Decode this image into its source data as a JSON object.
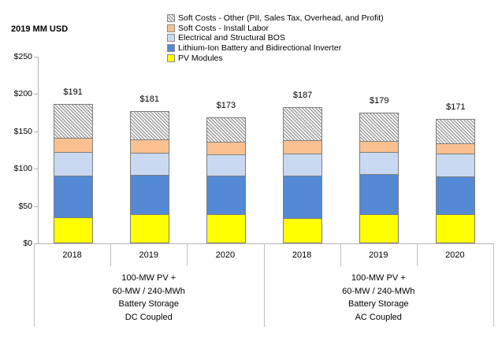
{
  "chart_data": {
    "type": "bar",
    "stacked": true,
    "unit_label": "2019 MM USD",
    "legend_position": "top-right",
    "legend_order": "reverse-of-stack",
    "grid": false,
    "y_axis": {
      "min": 0,
      "max": 250,
      "tick_step": 50,
      "ticks": [
        {
          "value": 250,
          "label": "$250"
        },
        {
          "value": 200,
          "label": "$200"
        },
        {
          "value": 150,
          "label": "$150"
        },
        {
          "value": 100,
          "label": "$100"
        },
        {
          "value": 50,
          "label": "$50"
        },
        {
          "value": 0,
          "label": "$0"
        }
      ]
    },
    "groups": [
      {
        "years": [
          "2018",
          "2019",
          "2020"
        ],
        "label_lines": [
          "100-MW PV +",
          "60-MW / 240-MWh",
          "Battery Storage",
          "DC Coupled"
        ]
      },
      {
        "years": [
          "2018",
          "2019",
          "2020"
        ],
        "label_lines": [
          "100-MW PV +",
          "60-MW / 240-MWh",
          "Battery Storage",
          "AC Coupled"
        ]
      }
    ],
    "series": [
      {
        "name": "PV Modules",
        "color": "#FFFF00",
        "pattern": "solid",
        "values": [
          35,
          39,
          39,
          34,
          39,
          39
        ]
      },
      {
        "name": "Lithium-Ion Battery and Bidirectional Inverter",
        "color": "#5389D5",
        "pattern": "solid",
        "values": [
          57,
          54,
          53,
          58,
          55,
          52
        ]
      },
      {
        "name": "Electrical and Structural BOS",
        "color": "#C9D9F1",
        "pattern": "solid",
        "values": [
          33,
          30,
          29,
          30,
          31,
          31
        ]
      },
      {
        "name": "Soft Costs - Install Labor",
        "color": "#FAC090",
        "pattern": "solid",
        "values": [
          20,
          19,
          18,
          19,
          15,
          15
        ]
      },
      {
        "name": "Soft Costs - Other (PII, Sales Tax, Overhead, and Profit)",
        "color": "#BFBFBF",
        "pattern": "hatch",
        "values": [
          46,
          39,
          34,
          46,
          39,
          34
        ]
      }
    ],
    "totals": [
      "$191",
      "$181",
      "$173",
      "$187",
      "$179",
      "$171"
    ]
  }
}
